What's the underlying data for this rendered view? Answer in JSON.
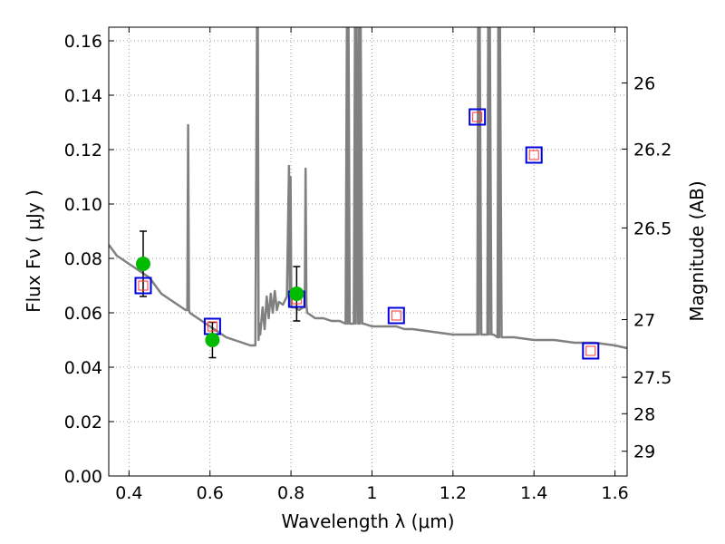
{
  "chart_data": {
    "type": "scatter",
    "title": "",
    "xlabel": "Wavelength  λ (μm)",
    "ylabel": "Flux  Fν  ( μJy )",
    "y2label": "Magnitude (AB)",
    "xlim": [
      0.35,
      1.63
    ],
    "ylim": [
      0.0,
      0.165
    ],
    "grid": true,
    "grid_style": "dotted",
    "xticks": [
      0.4,
      0.6,
      0.8,
      1.0,
      1.2,
      1.4,
      1.6
    ],
    "xtick_labels": [
      "0.4",
      "0.6",
      "0.8",
      "1",
      "1.2",
      "1.4",
      "1.6"
    ],
    "yticks": [
      0.0,
      0.02,
      0.04,
      0.06,
      0.08,
      0.1,
      0.12,
      0.14,
      0.16
    ],
    "ytick_labels": [
      "0.00",
      "0.02",
      "0.04",
      "0.06",
      "0.08",
      "0.10",
      "0.12",
      "0.14",
      "0.16"
    ],
    "y2ticks": [
      {
        "label": "26",
        "flux": 0.1445
      },
      {
        "label": "26.2",
        "flux": 0.1202
      },
      {
        "label": "26.5",
        "flux": 0.0912
      },
      {
        "label": "27",
        "flux": 0.0575
      },
      {
        "label": "27.5",
        "flux": 0.0363
      },
      {
        "label": "28",
        "flux": 0.0229
      },
      {
        "label": "29",
        "flux": 0.0091
      }
    ],
    "colors": {
      "model": "#808080",
      "observed": "#00bb00",
      "synthetic_box": "#0000dd",
      "synthetic_inner": "#ff3333",
      "errorbar": "#000000",
      "grid": "#999999"
    },
    "series": [
      {
        "role": "model_sed",
        "style": "line",
        "x": [
          0.35,
          0.36,
          0.37,
          0.38,
          0.39,
          0.4,
          0.41,
          0.42,
          0.43,
          0.44,
          0.45,
          0.46,
          0.47,
          0.48,
          0.49,
          0.5,
          0.51,
          0.52,
          0.53,
          0.54,
          0.544,
          0.546,
          0.548,
          0.55,
          0.56,
          0.58,
          0.6,
          0.62,
          0.64,
          0.66,
          0.68,
          0.7,
          0.712,
          0.716,
          0.718,
          0.72,
          0.722,
          0.724,
          0.73,
          0.735,
          0.74,
          0.745,
          0.75,
          0.755,
          0.76,
          0.765,
          0.77,
          0.78,
          0.79,
          0.795,
          0.797,
          0.799,
          0.801,
          0.81,
          0.82,
          0.83,
          0.834,
          0.836,
          0.838,
          0.84,
          0.85,
          0.86,
          0.88,
          0.9,
          0.92,
          0.935,
          0.938,
          0.94,
          0.942,
          0.945,
          0.955,
          0.958,
          0.96,
          0.962,
          0.966,
          0.968,
          0.97,
          0.972,
          0.976,
          0.98,
          1.0,
          1.02,
          1.04,
          1.06,
          1.08,
          1.1,
          1.15,
          1.2,
          1.25,
          1.26,
          1.262,
          1.264,
          1.266,
          1.27,
          1.28,
          1.285,
          1.287,
          1.289,
          1.291,
          1.295,
          1.3,
          1.31,
          1.312,
          1.314,
          1.316,
          1.32,
          1.35,
          1.4,
          1.45,
          1.5,
          1.55,
          1.6,
          1.63
        ],
        "y": [
          0.085,
          0.083,
          0.081,
          0.08,
          0.079,
          0.078,
          0.077,
          0.076,
          0.075,
          0.074,
          0.073,
          0.071,
          0.069,
          0.067,
          0.066,
          0.065,
          0.064,
          0.063,
          0.062,
          0.061,
          0.061,
          0.129,
          0.061,
          0.06,
          0.059,
          0.057,
          0.055,
          0.053,
          0.051,
          0.05,
          0.049,
          0.048,
          0.048,
          0.165,
          0.165,
          0.05,
          0.056,
          0.052,
          0.062,
          0.054,
          0.066,
          0.058,
          0.067,
          0.06,
          0.068,
          0.061,
          0.064,
          0.063,
          0.066,
          0.114,
          0.063,
          0.11,
          0.062,
          0.062,
          0.061,
          0.062,
          0.062,
          0.113,
          0.063,
          0.06,
          0.059,
          0.058,
          0.058,
          0.057,
          0.057,
          0.056,
          0.165,
          0.056,
          0.165,
          0.056,
          0.056,
          0.165,
          0.056,
          0.165,
          0.056,
          0.165,
          0.056,
          0.165,
          0.056,
          0.056,
          0.055,
          0.055,
          0.055,
          0.055,
          0.054,
          0.054,
          0.053,
          0.052,
          0.052,
          0.052,
          0.165,
          0.052,
          0.165,
          0.052,
          0.052,
          0.052,
          0.165,
          0.052,
          0.165,
          0.052,
          0.052,
          0.051,
          0.165,
          0.051,
          0.165,
          0.051,
          0.051,
          0.05,
          0.05,
          0.049,
          0.049,
          0.048,
          0.047
        ]
      },
      {
        "role": "observed_photometry",
        "style": "circle",
        "x": [
          0.435,
          0.606,
          0.814
        ],
        "y": [
          0.078,
          0.05,
          0.067
        ],
        "yerr": [
          0.012,
          0.0065,
          0.01
        ]
      },
      {
        "role": "synthetic_photometry",
        "style": "square",
        "x": [
          0.435,
          0.606,
          0.814,
          1.06,
          1.26,
          1.4,
          1.54
        ],
        "y": [
          0.07,
          0.055,
          0.065,
          0.059,
          0.132,
          0.118,
          0.046
        ]
      }
    ]
  }
}
